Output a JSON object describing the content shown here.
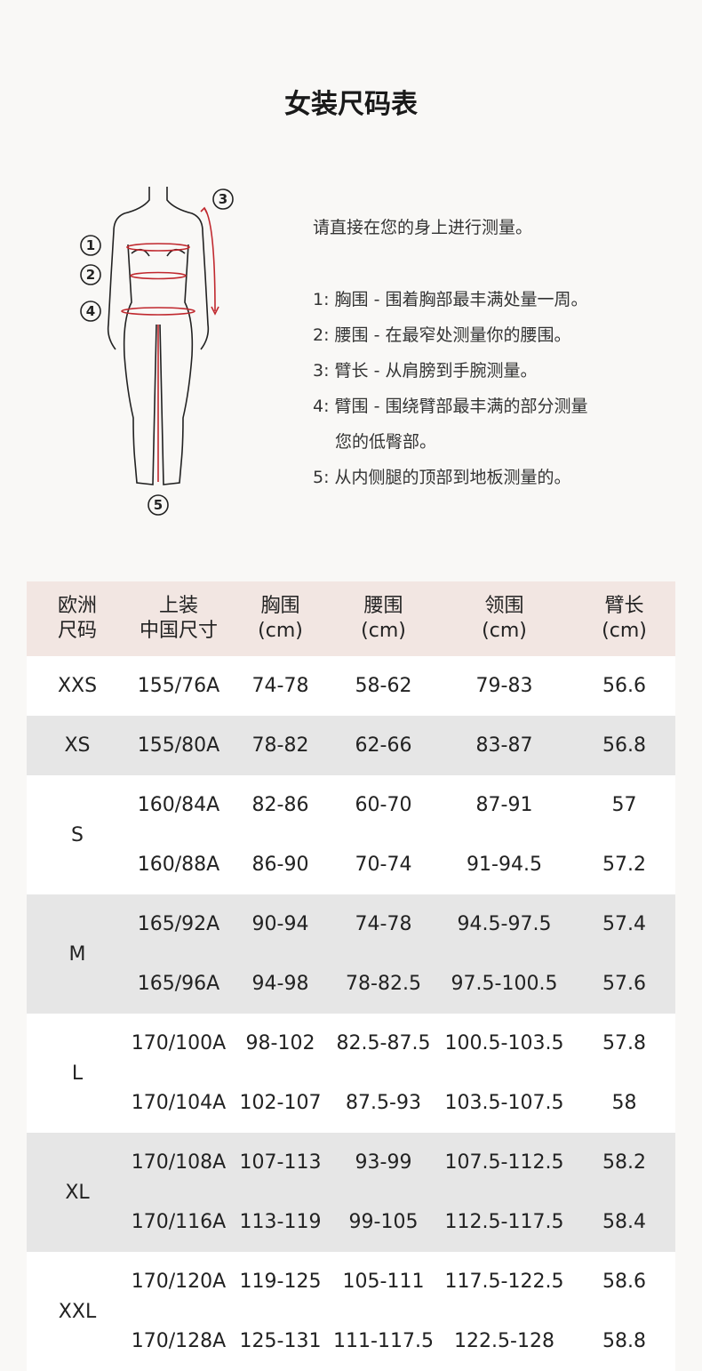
{
  "title": "女装尺码表",
  "instructions": {
    "intro": "请直接在您的身上进行测量。",
    "items": [
      "1: 胸围 - 围着胸部最丰满处量一周。",
      "2: 腰围 - 在最窄处测量你的腰围。",
      "3: 臂长 - 从肩膀到手腕测量。",
      "4: 臂围 - 围绕臂部最丰满的部分测量",
      "您的低臀部。",
      "5: 从内侧腿的顶部到地板测量的。"
    ]
  },
  "figure": {
    "labels": [
      "1",
      "2",
      "3",
      "4",
      "5"
    ],
    "accent": "#c0282e"
  },
  "table": {
    "headers": [
      [
        "欧洲",
        "尺码"
      ],
      [
        "上装",
        "中国尺寸"
      ],
      [
        "胸围",
        "(cm)"
      ],
      [
        "腰围",
        "(cm)"
      ],
      [
        "领围",
        "(cm)"
      ],
      [
        "臂长",
        "(cm)"
      ]
    ],
    "groups": [
      {
        "size": "XXS",
        "rows": [
          [
            "155/76A",
            "74-78",
            "58-62",
            "79-83",
            "56.6"
          ]
        ]
      },
      {
        "size": "XS",
        "rows": [
          [
            "155/80A",
            "78-82",
            "62-66",
            "83-87",
            "56.8"
          ]
        ]
      },
      {
        "size": "S",
        "rows": [
          [
            "160/84A",
            "82-86",
            "60-70",
            "87-91",
            "57"
          ],
          [
            "160/88A",
            "86-90",
            "70-74",
            "91-94.5",
            "57.2"
          ]
        ]
      },
      {
        "size": "M",
        "rows": [
          [
            "165/92A",
            "90-94",
            "74-78",
            "94.5-97.5",
            "57.4"
          ],
          [
            "165/96A",
            "94-98",
            "78-82.5",
            "97.5-100.5",
            "57.6"
          ]
        ]
      },
      {
        "size": "L",
        "rows": [
          [
            "170/100A",
            "98-102",
            "82.5-87.5",
            "100.5-103.5",
            "57.8"
          ],
          [
            "170/104A",
            "102-107",
            "87.5-93",
            "103.5-107.5",
            "58"
          ]
        ]
      },
      {
        "size": "XL",
        "rows": [
          [
            "170/108A",
            "107-113",
            "93-99",
            "107.5-112.5",
            "58.2"
          ],
          [
            "170/116A",
            "113-119",
            "99-105",
            "112.5-117.5",
            "58.4"
          ]
        ]
      },
      {
        "size": "XXL",
        "rows": [
          [
            "170/120A",
            "119-125",
            "105-111",
            "117.5-122.5",
            "58.6"
          ],
          [
            "170/128A",
            "125-131",
            "111-117.5",
            "122.5-128",
            "58.8"
          ]
        ]
      }
    ],
    "colors": {
      "header": "#f2e6e2",
      "alt_row": "#e6e6e6"
    }
  }
}
